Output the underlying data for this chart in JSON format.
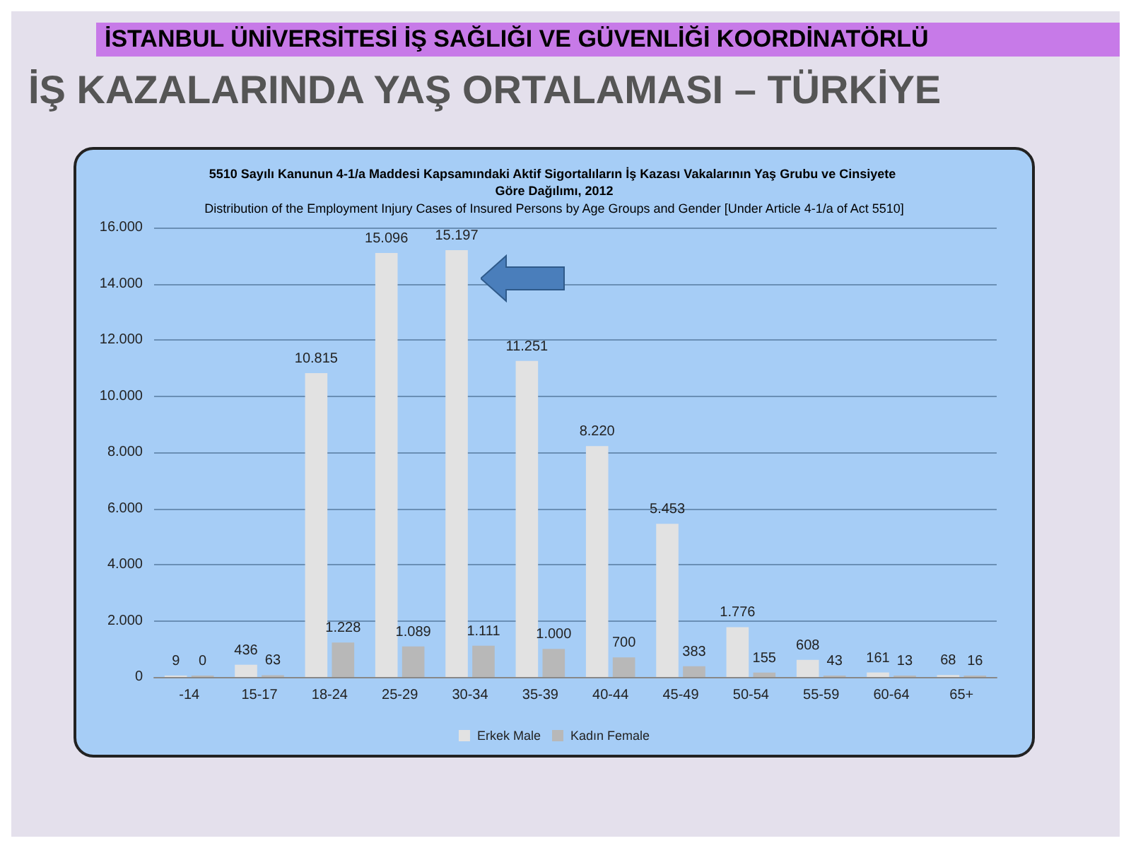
{
  "chart_data": {
    "type": "bar",
    "title": "5510 Sayılı Kanunun 4-1/a Maddesi Kapsamındaki Aktif Sigortalıların İş Kazası Vakalarının Yaş Grubu ve Cinsiyete Göre Dağılımı, 2012",
    "subtitle": "Distribution of the Employment Injury Cases of Insured Persons by Age Groups and Gender [Under Article 4-1/a of Act 5510]",
    "annotations": [
      "İSTANBUL ÜNİVERSİTESİ İŞ SAĞLIĞI VE GÜVENLİĞİ KOORDİNATÖRLÜ",
      "İŞ KAZALARINDA YAŞ ORTALAMASI – TÜRKİYE"
    ],
    "categories": [
      "-14",
      "15-17",
      "18-24",
      "25-29",
      "30-34",
      "35-39",
      "40-44",
      "45-49",
      "50-54",
      "55-59",
      "60-64",
      "65+"
    ],
    "series": [
      {
        "name": "Erkek Male",
        "color": "#e2e2e2",
        "values": [
          9,
          436,
          10815,
          15096,
          15197,
          11251,
          8220,
          5453,
          1776,
          608,
          161,
          68
        ],
        "value_labels": [
          "9",
          "436",
          "10.815",
          "15.096",
          "15.197",
          "11.251",
          "8.220",
          "5.453",
          "1.776",
          "608",
          "161",
          "68"
        ]
      },
      {
        "name": "Kadın Female",
        "color": "#b8b8b8",
        "values": [
          0,
          63,
          1228,
          1089,
          1111,
          1000,
          700,
          383,
          155,
          43,
          13,
          16
        ],
        "value_labels": [
          "0",
          "63",
          "1.228",
          "1.089",
          "1.111",
          "1.000",
          "700",
          "383",
          "155",
          "43",
          "13",
          "16"
        ]
      }
    ],
    "ylim": [
      0,
      16000
    ],
    "yticks": [
      {
        "value": 0,
        "label": "0"
      },
      {
        "value": 2000,
        "label": "2.000"
      },
      {
        "value": 4000,
        "label": "4.000"
      },
      {
        "value": 6000,
        "label": "6.000"
      },
      {
        "value": 8000,
        "label": "8.000"
      },
      {
        "value": 10000,
        "label": "10.000"
      },
      {
        "value": 12000,
        "label": "12.000"
      },
      {
        "value": 14000,
        "label": "14.000"
      },
      {
        "value": 16000,
        "label": "16.000"
      }
    ],
    "grid": "y",
    "legend": "bottom"
  }
}
